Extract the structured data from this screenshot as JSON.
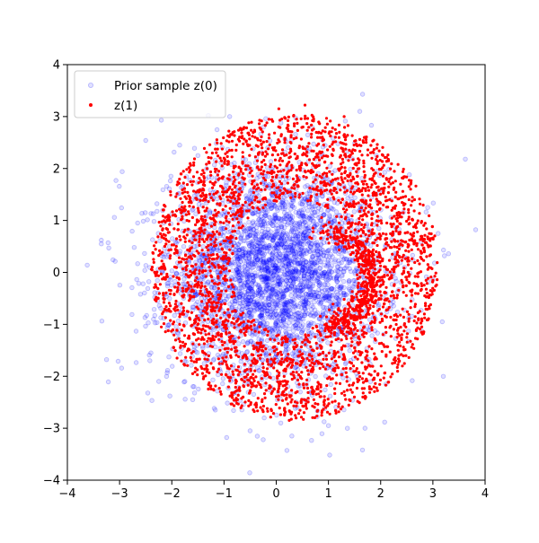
{
  "chart_data": {
    "type": "scatter",
    "title": "",
    "xlabel": "",
    "ylabel": "",
    "xlim": [
      -4,
      4
    ],
    "ylim": [
      -4,
      4
    ],
    "xticks": [
      -4,
      -3,
      -2,
      -1,
      0,
      1,
      2,
      3,
      4
    ],
    "yticks": [
      -4,
      -3,
      -2,
      -1,
      0,
      1,
      2,
      3,
      4
    ],
    "xtick_labels": [
      "−4",
      "−3",
      "−2",
      "−1",
      "0",
      "1",
      "2",
      "3",
      "4"
    ],
    "ytick_labels": [
      "−4",
      "−3",
      "−2",
      "−1",
      "0",
      "1",
      "2",
      "3",
      "4"
    ],
    "grid": false,
    "legend": {
      "placement": "upper-left"
    },
    "series": [
      {
        "name": "Prior sample z(0)",
        "color": "#0000ff",
        "marker": "circle-hollow",
        "alpha": 0.25,
        "distribution": "gaussian",
        "center": [
          0,
          0
        ],
        "std": 1.0,
        "count": 3500,
        "points": [
          [
            -3.62,
            0.14
          ],
          [
            -3.35,
            0.62
          ],
          [
            -3.35,
            0.55
          ],
          [
            -3.22,
            0.57
          ],
          [
            -3.25,
            -1.68
          ],
          [
            -3.1,
            1.06
          ],
          [
            -3.07,
            1.77
          ],
          [
            -2.95,
            1.94
          ],
          [
            -2.72,
            0.48
          ],
          [
            -2.6,
            -0.42
          ],
          [
            -2.55,
            -0.22
          ],
          [
            -2.5,
            2.54
          ],
          [
            -2.42,
            -1.7
          ],
          [
            -2.4,
            -1.55
          ],
          [
            -2.35,
            -0.9
          ],
          [
            -2.25,
            -2.1
          ],
          [
            -2.2,
            2.93
          ],
          [
            -2.15,
            0.95
          ],
          [
            -2.1,
            -2.0
          ],
          [
            -1.85,
            2.45
          ],
          [
            -1.75,
            -2.1
          ],
          [
            -1.6,
            -2.45
          ],
          [
            -1.5,
            2.25
          ],
          [
            -1.3,
            3.02
          ],
          [
            -0.95,
            -3.18
          ],
          [
            -0.5,
            -3.05
          ],
          [
            -0.25,
            -3.22
          ],
          [
            -0.2,
            2.96
          ],
          [
            0.3,
            -3.15
          ],
          [
            1.0,
            -2.95
          ],
          [
            1.6,
            3.1
          ],
          [
            1.7,
            -3.0
          ],
          [
            2.1,
            -2.15
          ],
          [
            2.2,
            1.4
          ],
          [
            2.55,
            1.88
          ],
          [
            2.9,
            1.25
          ],
          [
            3.1,
            0.75
          ],
          [
            3.18,
            -0.95
          ],
          [
            3.2,
            -2.0
          ],
          [
            3.22,
            0.32
          ],
          [
            3.82,
            0.82
          ],
          [
            3.3,
            0.36
          ]
        ]
      },
      {
        "name": "z(1)",
        "color": "#ff0000",
        "marker": "circle-filled",
        "alpha": 1.0,
        "distribution": "shell",
        "shell_radius_range": [
          1.3,
          2.95
        ],
        "shell_center": [
          0.35,
          0.1
        ],
        "count": 3500,
        "points": [
          [
            -2.35,
            0.25
          ],
          [
            -2.3,
            -0.55
          ],
          [
            -2.2,
            -1.05
          ],
          [
            -2.15,
            -0.1
          ],
          [
            -2.05,
            1.02
          ],
          [
            -1.9,
            -1.65
          ],
          [
            -1.75,
            1.55
          ],
          [
            -1.6,
            -1.95
          ],
          [
            -1.05,
            2.15
          ],
          [
            -0.85,
            -2.35
          ],
          [
            -0.35,
            2.55
          ],
          [
            -0.3,
            -2.6
          ],
          [
            0.05,
            3.15
          ],
          [
            0.25,
            -2.85
          ],
          [
            0.55,
            3.22
          ],
          [
            0.95,
            -2.6
          ],
          [
            1.3,
            3.0
          ],
          [
            1.4,
            -2.45
          ],
          [
            1.7,
            2.6
          ],
          [
            1.95,
            -1.95
          ],
          [
            2.15,
            2.15
          ],
          [
            2.35,
            -1.6
          ],
          [
            2.65,
            1.4
          ],
          [
            2.75,
            -0.75
          ],
          [
            2.95,
            0.65
          ],
          [
            3.0,
            -0.15
          ],
          [
            2.1,
            0.55
          ],
          [
            2.5,
            -1.25
          ]
        ]
      }
    ]
  }
}
